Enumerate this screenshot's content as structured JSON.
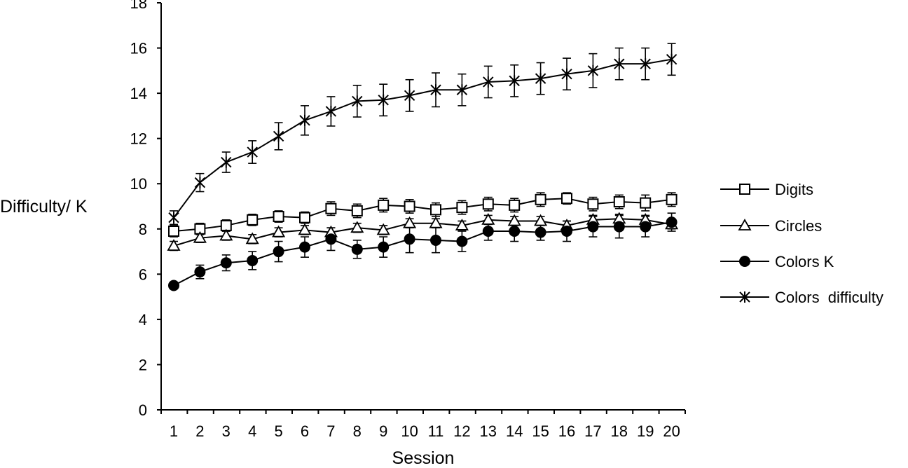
{
  "chart_data": {
    "type": "line",
    "xlabel": "Session",
    "ylabel": "Difficulty/ K",
    "ylim": [
      0,
      18
    ],
    "yticks": [
      0,
      2,
      4,
      6,
      8,
      10,
      12,
      14,
      16,
      18
    ],
    "x": [
      1,
      2,
      3,
      4,
      5,
      6,
      7,
      8,
      9,
      10,
      11,
      12,
      13,
      14,
      15,
      16,
      17,
      18,
      19,
      20
    ],
    "grid": false,
    "legend_position": "right",
    "series": [
      {
        "name": "Digits",
        "marker": "open-square",
        "values": [
          7.9,
          8.0,
          8.15,
          8.4,
          8.55,
          8.5,
          8.9,
          8.8,
          9.05,
          9.0,
          8.85,
          8.95,
          9.1,
          9.05,
          9.3,
          9.35,
          9.1,
          9.2,
          9.15,
          9.3
        ],
        "errors": [
          0.25,
          0.25,
          0.25,
          0.25,
          0.25,
          0.25,
          0.3,
          0.3,
          0.3,
          0.3,
          0.3,
          0.3,
          0.3,
          0.3,
          0.3,
          0.25,
          0.3,
          0.3,
          0.35,
          0.3
        ]
      },
      {
        "name": "Circles",
        "marker": "open-triangle",
        "values": [
          7.25,
          7.6,
          7.7,
          7.55,
          7.85,
          7.95,
          7.85,
          8.05,
          7.95,
          8.25,
          8.25,
          8.15,
          8.4,
          8.35,
          8.35,
          8.15,
          8.4,
          8.45,
          8.4,
          8.2
        ],
        "errors": [
          0.2,
          0.2,
          0.2,
          0.2,
          0.2,
          0.2,
          0.2,
          0.2,
          0.2,
          0.2,
          0.2,
          0.2,
          0.2,
          0.2,
          0.2,
          0.2,
          0.2,
          0.2,
          0.2,
          0.2
        ]
      },
      {
        "name": "Colors K",
        "marker": "filled-circle",
        "values": [
          5.5,
          6.1,
          6.5,
          6.6,
          7.0,
          7.2,
          7.55,
          7.1,
          7.2,
          7.55,
          7.5,
          7.45,
          7.9,
          7.9,
          7.85,
          7.9,
          8.1,
          8.1,
          8.1,
          8.3
        ],
        "errors": [
          0.1,
          0.3,
          0.35,
          0.4,
          0.45,
          0.45,
          0.5,
          0.4,
          0.45,
          0.6,
          0.55,
          0.45,
          0.4,
          0.45,
          0.35,
          0.45,
          0.45,
          0.5,
          0.45,
          0.4
        ]
      },
      {
        "name": "Colors  difficulty",
        "marker": "star",
        "values": [
          8.5,
          10.05,
          10.95,
          11.4,
          12.1,
          12.8,
          13.2,
          13.65,
          13.7,
          13.9,
          14.15,
          14.15,
          14.5,
          14.55,
          14.65,
          14.85,
          15.0,
          15.3,
          15.3,
          15.5
        ],
        "errors": [
          0.3,
          0.4,
          0.45,
          0.5,
          0.6,
          0.65,
          0.65,
          0.7,
          0.7,
          0.7,
          0.75,
          0.7,
          0.7,
          0.7,
          0.7,
          0.7,
          0.75,
          0.7,
          0.7,
          0.7
        ]
      }
    ]
  }
}
